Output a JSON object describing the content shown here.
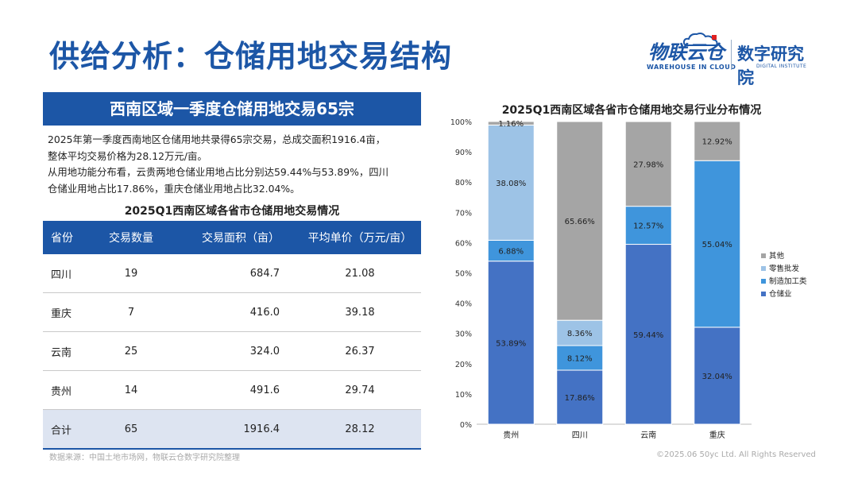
{
  "page": {
    "title": "供给分析：仓储用地交易结构",
    "logo_main": "物联云仓",
    "logo_sub": "WAREHOUSE IN CLOUD",
    "logo_inst": "数字研究院",
    "logo_inst_sub": "DIGITAL INSTITUTE",
    "banner": "西南区域一季度仓储用地交易65宗",
    "para_line1": "2025年第一季度西南地区仓储用地共录得65宗交易，总成交面积1916.4亩，",
    "para_line2": "整体平均交易价格为28.12万元/亩。",
    "para_line3": "从用地功能分布看，云贵两地仓储业用地占比分别达59.44%与53.89%，四川",
    "para_line4": "仓储业用地占比17.86%，重庆仓储业用地占比32.04%。",
    "footer_left": "数据来源：中国土地市场网，物联云仓数字研究院整理",
    "footer_right": "©2025.06 50yc Ltd. All Rights Reserved"
  },
  "table": {
    "title": "2025Q1西南区域各省市仓储用地交易情况",
    "headers": [
      "省份",
      "交易数量",
      "交易面积（亩）",
      "平均单价（万元/亩）"
    ],
    "rows": [
      [
        "四川",
        "19",
        "684.7",
        "21.08"
      ],
      [
        "重庆",
        "7",
        "416.0",
        "39.18"
      ],
      [
        "云南",
        "25",
        "324.0",
        "26.37"
      ],
      [
        "贵州",
        "14",
        "491.6",
        "29.74"
      ]
    ],
    "total": [
      "合计",
      "65",
      "1916.4",
      "28.12"
    ]
  },
  "chart_data": {
    "type": "bar",
    "stacked": true,
    "title": "2025Q1西南区域各省市仓储用地交易行业分布情况",
    "categories": [
      "贵州",
      "四川",
      "云南",
      "重庆"
    ],
    "series": [
      {
        "name": "仓储业",
        "color": "#4472c4",
        "values": [
          53.89,
          17.86,
          59.44,
          32.04
        ]
      },
      {
        "name": "制造加工类",
        "color": "#3f95dc",
        "values": [
          6.88,
          8.12,
          12.57,
          55.04
        ]
      },
      {
        "name": "零售批发",
        "color": "#9dc3e6",
        "values": [
          38.08,
          8.36,
          0,
          0
        ]
      },
      {
        "name": "其他",
        "color": "#a5a5a5",
        "values": [
          1.16,
          65.66,
          27.98,
          12.92
        ]
      }
    ],
    "labels": [
      [
        "53.89%",
        "17.86%",
        "59.44%",
        "32.04%"
      ],
      [
        "6.88%",
        "8.12%",
        "12.57%",
        "55.04%"
      ],
      [
        "38.08%",
        "8.36%",
        "",
        ""
      ],
      [
        "1.16%",
        "65.66%",
        "27.98%",
        "12.92%"
      ]
    ],
    "ylim": [
      0,
      100
    ],
    "yticks": [
      "0%",
      "10%",
      "20%",
      "30%",
      "40%",
      "50%",
      "60%",
      "70%",
      "80%",
      "90%",
      "100%"
    ],
    "legend_order": [
      "其他",
      "零售批发",
      "制造加工类",
      "仓储业"
    ],
    "legend_position": "right"
  }
}
